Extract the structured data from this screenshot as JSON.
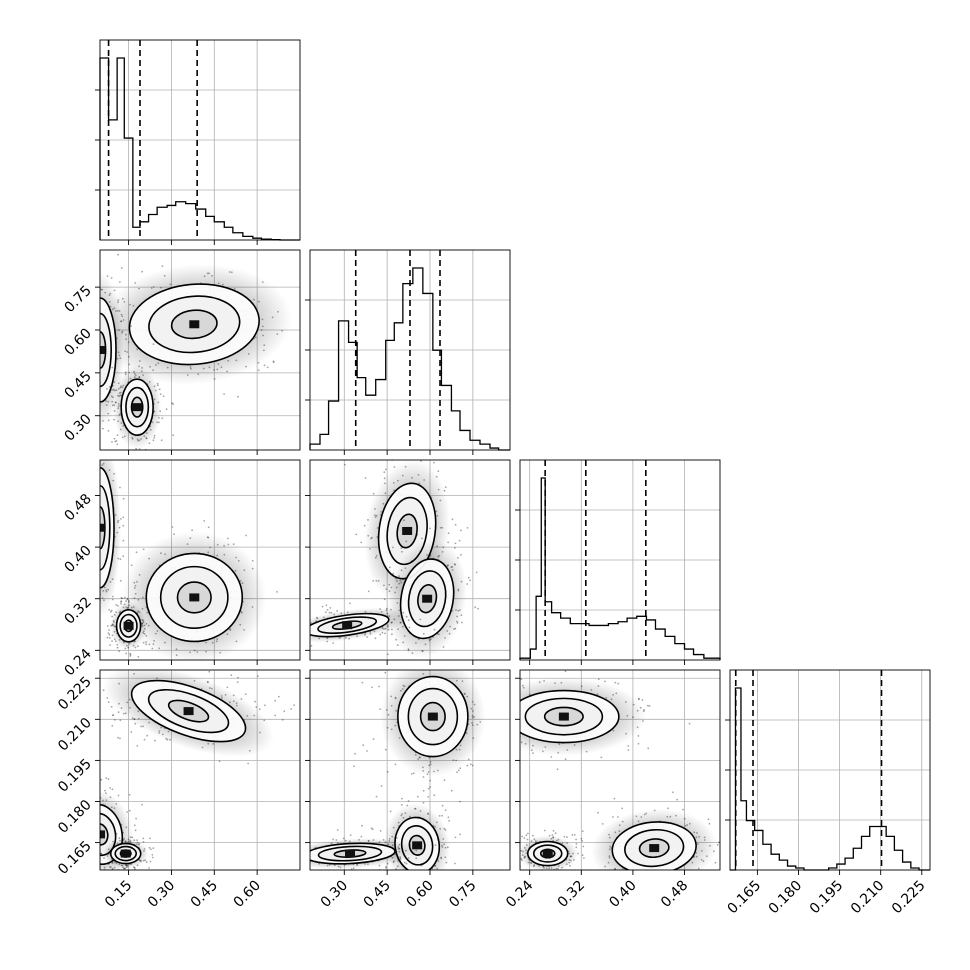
{
  "chart_data": {
    "type": "corner",
    "parameters": 4,
    "panels": {
      "hist_0": {
        "type": "histogram",
        "xlim": [
          0.05,
          0.75
        ],
        "quantiles": [
          0.08,
          0.19,
          0.39
        ],
        "bin_edges": [
          0.05,
          0.08,
          0.11,
          0.135,
          0.165,
          0.19,
          0.22,
          0.25,
          0.285,
          0.315,
          0.35,
          0.385,
          0.42,
          0.45,
          0.485,
          0.515,
          0.55,
          0.585,
          0.615,
          0.65,
          0.68,
          0.75
        ],
        "counts": [
          1.0,
          0.66,
          1.0,
          0.56,
          0.07,
          0.1,
          0.14,
          0.18,
          0.19,
          0.21,
          0.2,
          0.17,
          0.13,
          0.1,
          0.07,
          0.04,
          0.02,
          0.01,
          0.005,
          0.002,
          0.0
        ]
      },
      "hist_1": {
        "type": "histogram",
        "xlim": [
          0.18,
          0.88
        ],
        "quantiles": [
          0.34,
          0.53,
          0.635
        ],
        "bin_edges": [
          0.18,
          0.215,
          0.245,
          0.28,
          0.315,
          0.345,
          0.375,
          0.41,
          0.445,
          0.475,
          0.505,
          0.54,
          0.575,
          0.61,
          0.64,
          0.675,
          0.705,
          0.74,
          0.775,
          0.81,
          0.84,
          0.88
        ],
        "counts": [
          0.03,
          0.08,
          0.25,
          0.66,
          0.55,
          0.37,
          0.28,
          0.36,
          0.56,
          0.65,
          0.85,
          0.93,
          0.8,
          0.51,
          0.33,
          0.2,
          0.1,
          0.05,
          0.03,
          0.01,
          0.0
        ]
      },
      "hist_2": {
        "type": "histogram",
        "xlim": [
          0.225,
          0.535
        ],
        "quantiles": [
          0.264,
          0.327,
          0.42
        ],
        "bin_edges": [
          0.225,
          0.241,
          0.25,
          0.258,
          0.264,
          0.274,
          0.288,
          0.303,
          0.318,
          0.332,
          0.347,
          0.362,
          0.377,
          0.391,
          0.406,
          0.421,
          0.435,
          0.45,
          0.465,
          0.48,
          0.494,
          0.51,
          0.535
        ],
        "counts": [
          0.01,
          0.06,
          0.35,
          1.0,
          0.32,
          0.26,
          0.23,
          0.2,
          0.2,
          0.19,
          0.19,
          0.2,
          0.21,
          0.23,
          0.24,
          0.22,
          0.17,
          0.13,
          0.09,
          0.06,
          0.03,
          0.01
        ]
      },
      "hist_3": {
        "type": "histogram",
        "xlim": [
          0.155,
          0.228
        ],
        "quantiles": [
          0.1571,
          0.1634,
          0.2103
        ],
        "bin_edges": [
          0.155,
          0.157,
          0.159,
          0.161,
          0.164,
          0.167,
          0.17,
          0.173,
          0.176,
          0.179,
          0.182,
          0.185,
          0.188,
          0.191,
          0.194,
          0.197,
          0.2,
          0.203,
          0.206,
          0.209,
          0.212,
          0.215,
          0.218,
          0.221,
          0.224,
          0.228
        ],
        "counts": [
          0.0,
          0.92,
          0.35,
          0.25,
          0.2,
          0.13,
          0.08,
          0.05,
          0.02,
          0.01,
          0.0,
          0.0,
          0.0,
          0.01,
          0.03,
          0.06,
          0.11,
          0.17,
          0.22,
          0.22,
          0.17,
          0.1,
          0.04,
          0.01,
          0.0
        ]
      },
      "scatter_1_0": {
        "type": "2d-density",
        "xlim": [
          0.05,
          0.75
        ],
        "ylim": [
          0.18,
          0.88
        ],
        "modes": [
          [
            0.38,
            0.62
          ],
          [
            0.05,
            0.53
          ],
          [
            0.18,
            0.33
          ]
        ]
      },
      "scatter_2_0": {
        "type": "2d-density",
        "xlim": [
          0.05,
          0.75
        ],
        "ylim": [
          0.225,
          0.535
        ],
        "modes": [
          [
            0.05,
            0.43
          ],
          [
            0.38,
            0.322
          ],
          [
            0.15,
            0.278
          ]
        ]
      },
      "scatter_2_1": {
        "type": "2d-density",
        "xlim": [
          0.18,
          0.88
        ],
        "ylim": [
          0.225,
          0.535
        ],
        "modes": [
          [
            0.52,
            0.425
          ],
          [
            0.59,
            0.32
          ],
          [
            0.31,
            0.279
          ]
        ]
      },
      "scatter_3_0": {
        "type": "2d-density",
        "xlim": [
          0.05,
          0.75
        ],
        "ylim": [
          0.155,
          0.228
        ],
        "modes": [
          [
            0.36,
            0.213
          ],
          [
            0.05,
            0.168
          ],
          [
            0.14,
            0.161
          ]
        ]
      },
      "scatter_3_1": {
        "type": "2d-density",
        "xlim": [
          0.18,
          0.88
        ],
        "ylim": [
          0.155,
          0.228
        ],
        "modes": [
          [
            0.61,
            0.211
          ],
          [
            0.555,
            0.164
          ],
          [
            0.32,
            0.161
          ]
        ]
      },
      "scatter_3_2": {
        "type": "2d-density",
        "xlim": [
          0.225,
          0.535
        ],
        "ylim": [
          0.155,
          0.228
        ],
        "modes": [
          [
            0.293,
            0.211
          ],
          [
            0.433,
            0.163
          ],
          [
            0.268,
            0.161
          ]
        ]
      }
    },
    "tick_labels": {
      "bottom_0": [
        "0.15",
        "0.30",
        "0.45",
        "0.60"
      ],
      "bottom_1": [
        "0.30",
        "0.45",
        "0.60",
        "0.75"
      ],
      "bottom_2": [
        "0.24",
        "0.32",
        "0.40",
        "0.48"
      ],
      "bottom_3": [
        "0.165",
        "0.180",
        "0.195",
        "0.210",
        "0.225"
      ],
      "left_1": [
        "0.75",
        "0.60",
        "0.45",
        "0.30"
      ],
      "left_2": [
        "0.48",
        "0.40",
        "0.32",
        "0.24"
      ],
      "left_3": [
        "0.225",
        "0.210",
        "0.195",
        "0.180",
        "0.165"
      ]
    }
  }
}
